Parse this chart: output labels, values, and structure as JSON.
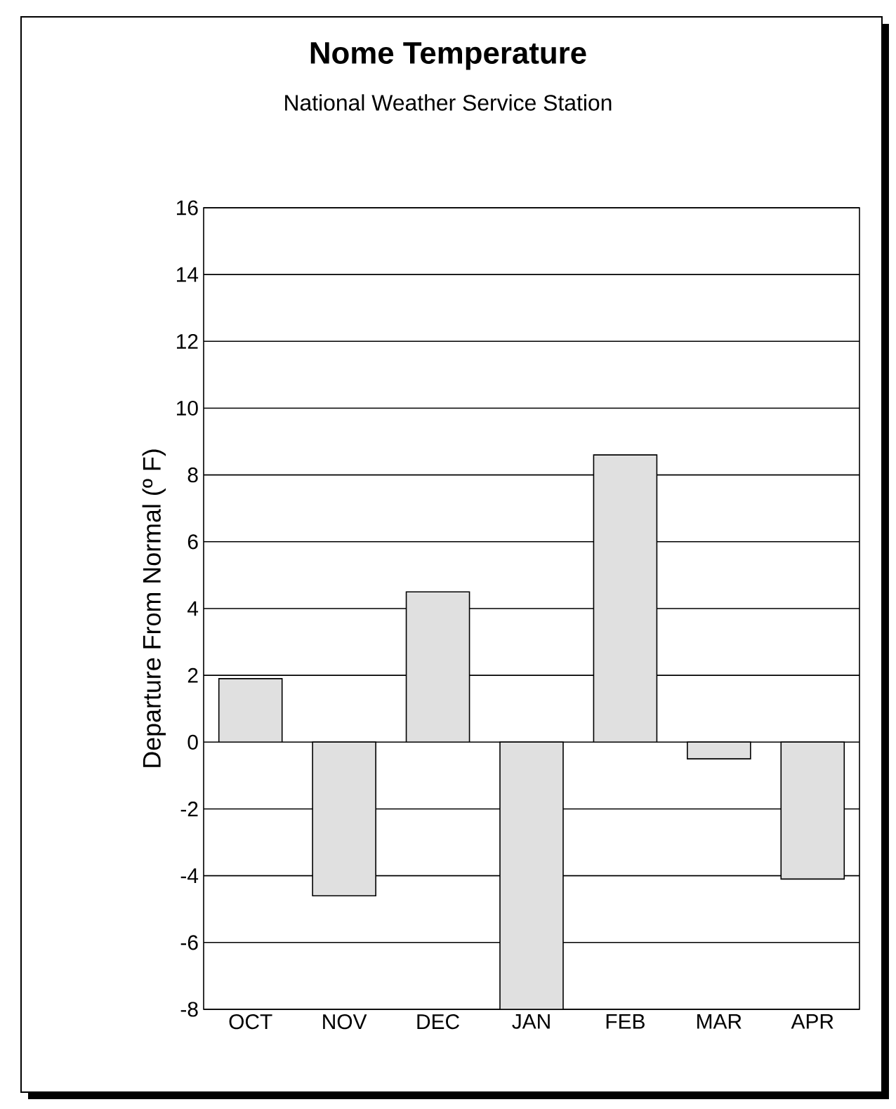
{
  "chart_data": {
    "type": "bar",
    "title": "Nome Temperature",
    "subtitle": "National Weather Service Station",
    "ylabel": "Departure From Normal (º F)",
    "categories": [
      "OCT",
      "NOV",
      "DEC",
      "JAN",
      "FEB",
      "MAR",
      "APR"
    ],
    "values": [
      1.9,
      -4.6,
      4.5,
      -8,
      8.6,
      -0.5,
      -4.1
    ],
    "color": "#e0e0e0",
    "ylim": [
      -8,
      16
    ],
    "yticks": [
      -8,
      -6,
      -4,
      -2,
      0,
      2,
      4,
      6,
      8,
      10,
      12,
      14,
      16
    ],
    "grid": "y"
  }
}
